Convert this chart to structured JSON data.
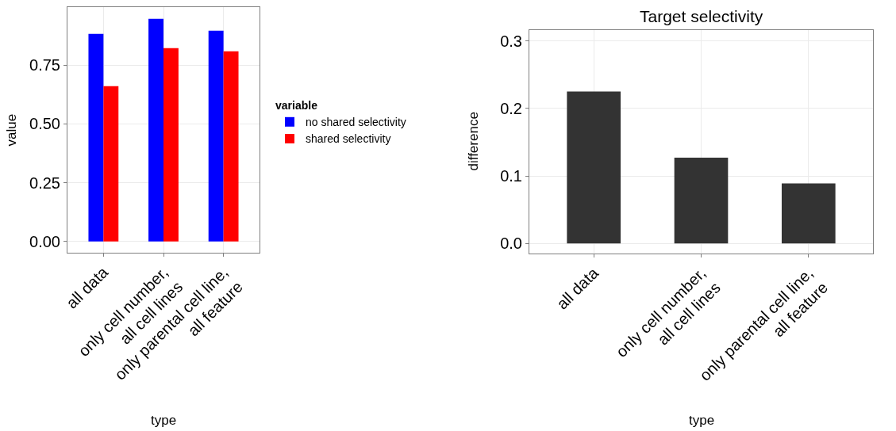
{
  "chart_data": [
    {
      "type": "bar",
      "xlabel": "type",
      "ylabel": "value",
      "legend_title": "variable",
      "legend": "right",
      "grid": true,
      "categories": [
        "all data",
        "only cell number,\nall cell lines",
        "only parental cell line,\nall feature"
      ],
      "series": [
        {
          "name": "no shared selectivity",
          "color": "#0000ff",
          "values": [
            0.882,
            0.946,
            0.896
          ]
        },
        {
          "name": "shared selectivity",
          "color": "#ff0000",
          "values": [
            0.66,
            0.822,
            0.808
          ]
        }
      ],
      "ylim": [
        -0.048,
        0.996
      ],
      "yticks": [
        {
          "value": 0,
          "label": "0.00"
        },
        {
          "value": 0.25,
          "label": "0.25"
        },
        {
          "value": 0.5,
          "label": "0.50"
        },
        {
          "value": 0.75,
          "label": "0.75"
        }
      ]
    },
    {
      "type": "bar",
      "title": "Target selectivity",
      "xlabel": "type",
      "ylabel": "difference",
      "grid": true,
      "categories": [
        "all data",
        "only cell number,\nall cell lines",
        "only parental cell line,\nall feature"
      ],
      "series": [
        {
          "color": "#333333",
          "values": [
            0.225,
            0.127,
            0.089
          ]
        }
      ],
      "ylim": [
        -0.015,
        0.316
      ],
      "yticks": [
        {
          "value": 0,
          "label": "0.0"
        },
        {
          "value": 0.1,
          "label": "0.1"
        },
        {
          "value": 0.2,
          "label": "0.2"
        },
        {
          "value": 0.3,
          "label": "0.3"
        }
      ]
    }
  ]
}
